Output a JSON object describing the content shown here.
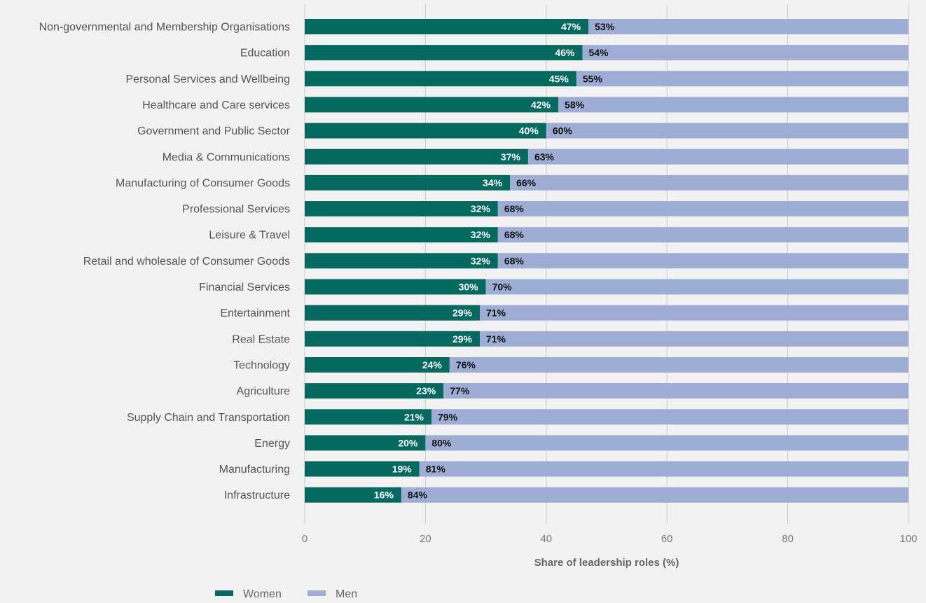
{
  "chart_data": {
    "type": "bar",
    "orientation": "horizontal",
    "stacked": true,
    "title": "",
    "xlabel": "Share of leadership roles (%)",
    "ylabel": "",
    "xlim": [
      0,
      100
    ],
    "xticks": [
      0,
      20,
      40,
      60,
      80,
      100
    ],
    "grid": "vertical",
    "legend": "bottom-left",
    "categories": [
      "Non-governmental and Membership Organisations",
      "Education",
      "Personal Services and Wellbeing",
      "Healthcare and Care services",
      "Government and Public Sector",
      "Media & Communications",
      "Manufacturing of Consumer Goods",
      "Professional Services",
      "Leisure & Travel",
      "Retail and wholesale of Consumer Goods",
      "Financial Services",
      "Entertainment",
      "Real Estate",
      "Technology",
      "Agriculture",
      "Supply Chain and Transportation",
      "Energy",
      "Manufacturing",
      "Infrastructure"
    ],
    "series": [
      {
        "name": "Women",
        "color": "#046a5f",
        "values": [
          47,
          46,
          45,
          42,
          40,
          37,
          34,
          32,
          32,
          32,
          30,
          29,
          29,
          24,
          23,
          21,
          20,
          19,
          16
        ],
        "labels": [
          "47%",
          "46%",
          "45%",
          "42%",
          "40%",
          "37%",
          "34%",
          "32%",
          "32%",
          "32%",
          "30%",
          "29%",
          "29%",
          "24%",
          "23%",
          "21%",
          "20%",
          "19%",
          "16%"
        ]
      },
      {
        "name": "Men",
        "color": "#9dadd4",
        "values": [
          53,
          54,
          55,
          58,
          60,
          63,
          66,
          68,
          68,
          68,
          70,
          71,
          71,
          76,
          77,
          79,
          80,
          81,
          84
        ],
        "labels": [
          "53%",
          "54%",
          "55%",
          "58%",
          "60%",
          "63%",
          "66%",
          "68%",
          "68%",
          "68%",
          "70%",
          "71%",
          "71%",
          "76%",
          "77%",
          "79%",
          "80%",
          "81%",
          "84%"
        ]
      }
    ]
  },
  "colors": {
    "gridline": "#c9c9c9",
    "background": "#f2f2f2"
  }
}
